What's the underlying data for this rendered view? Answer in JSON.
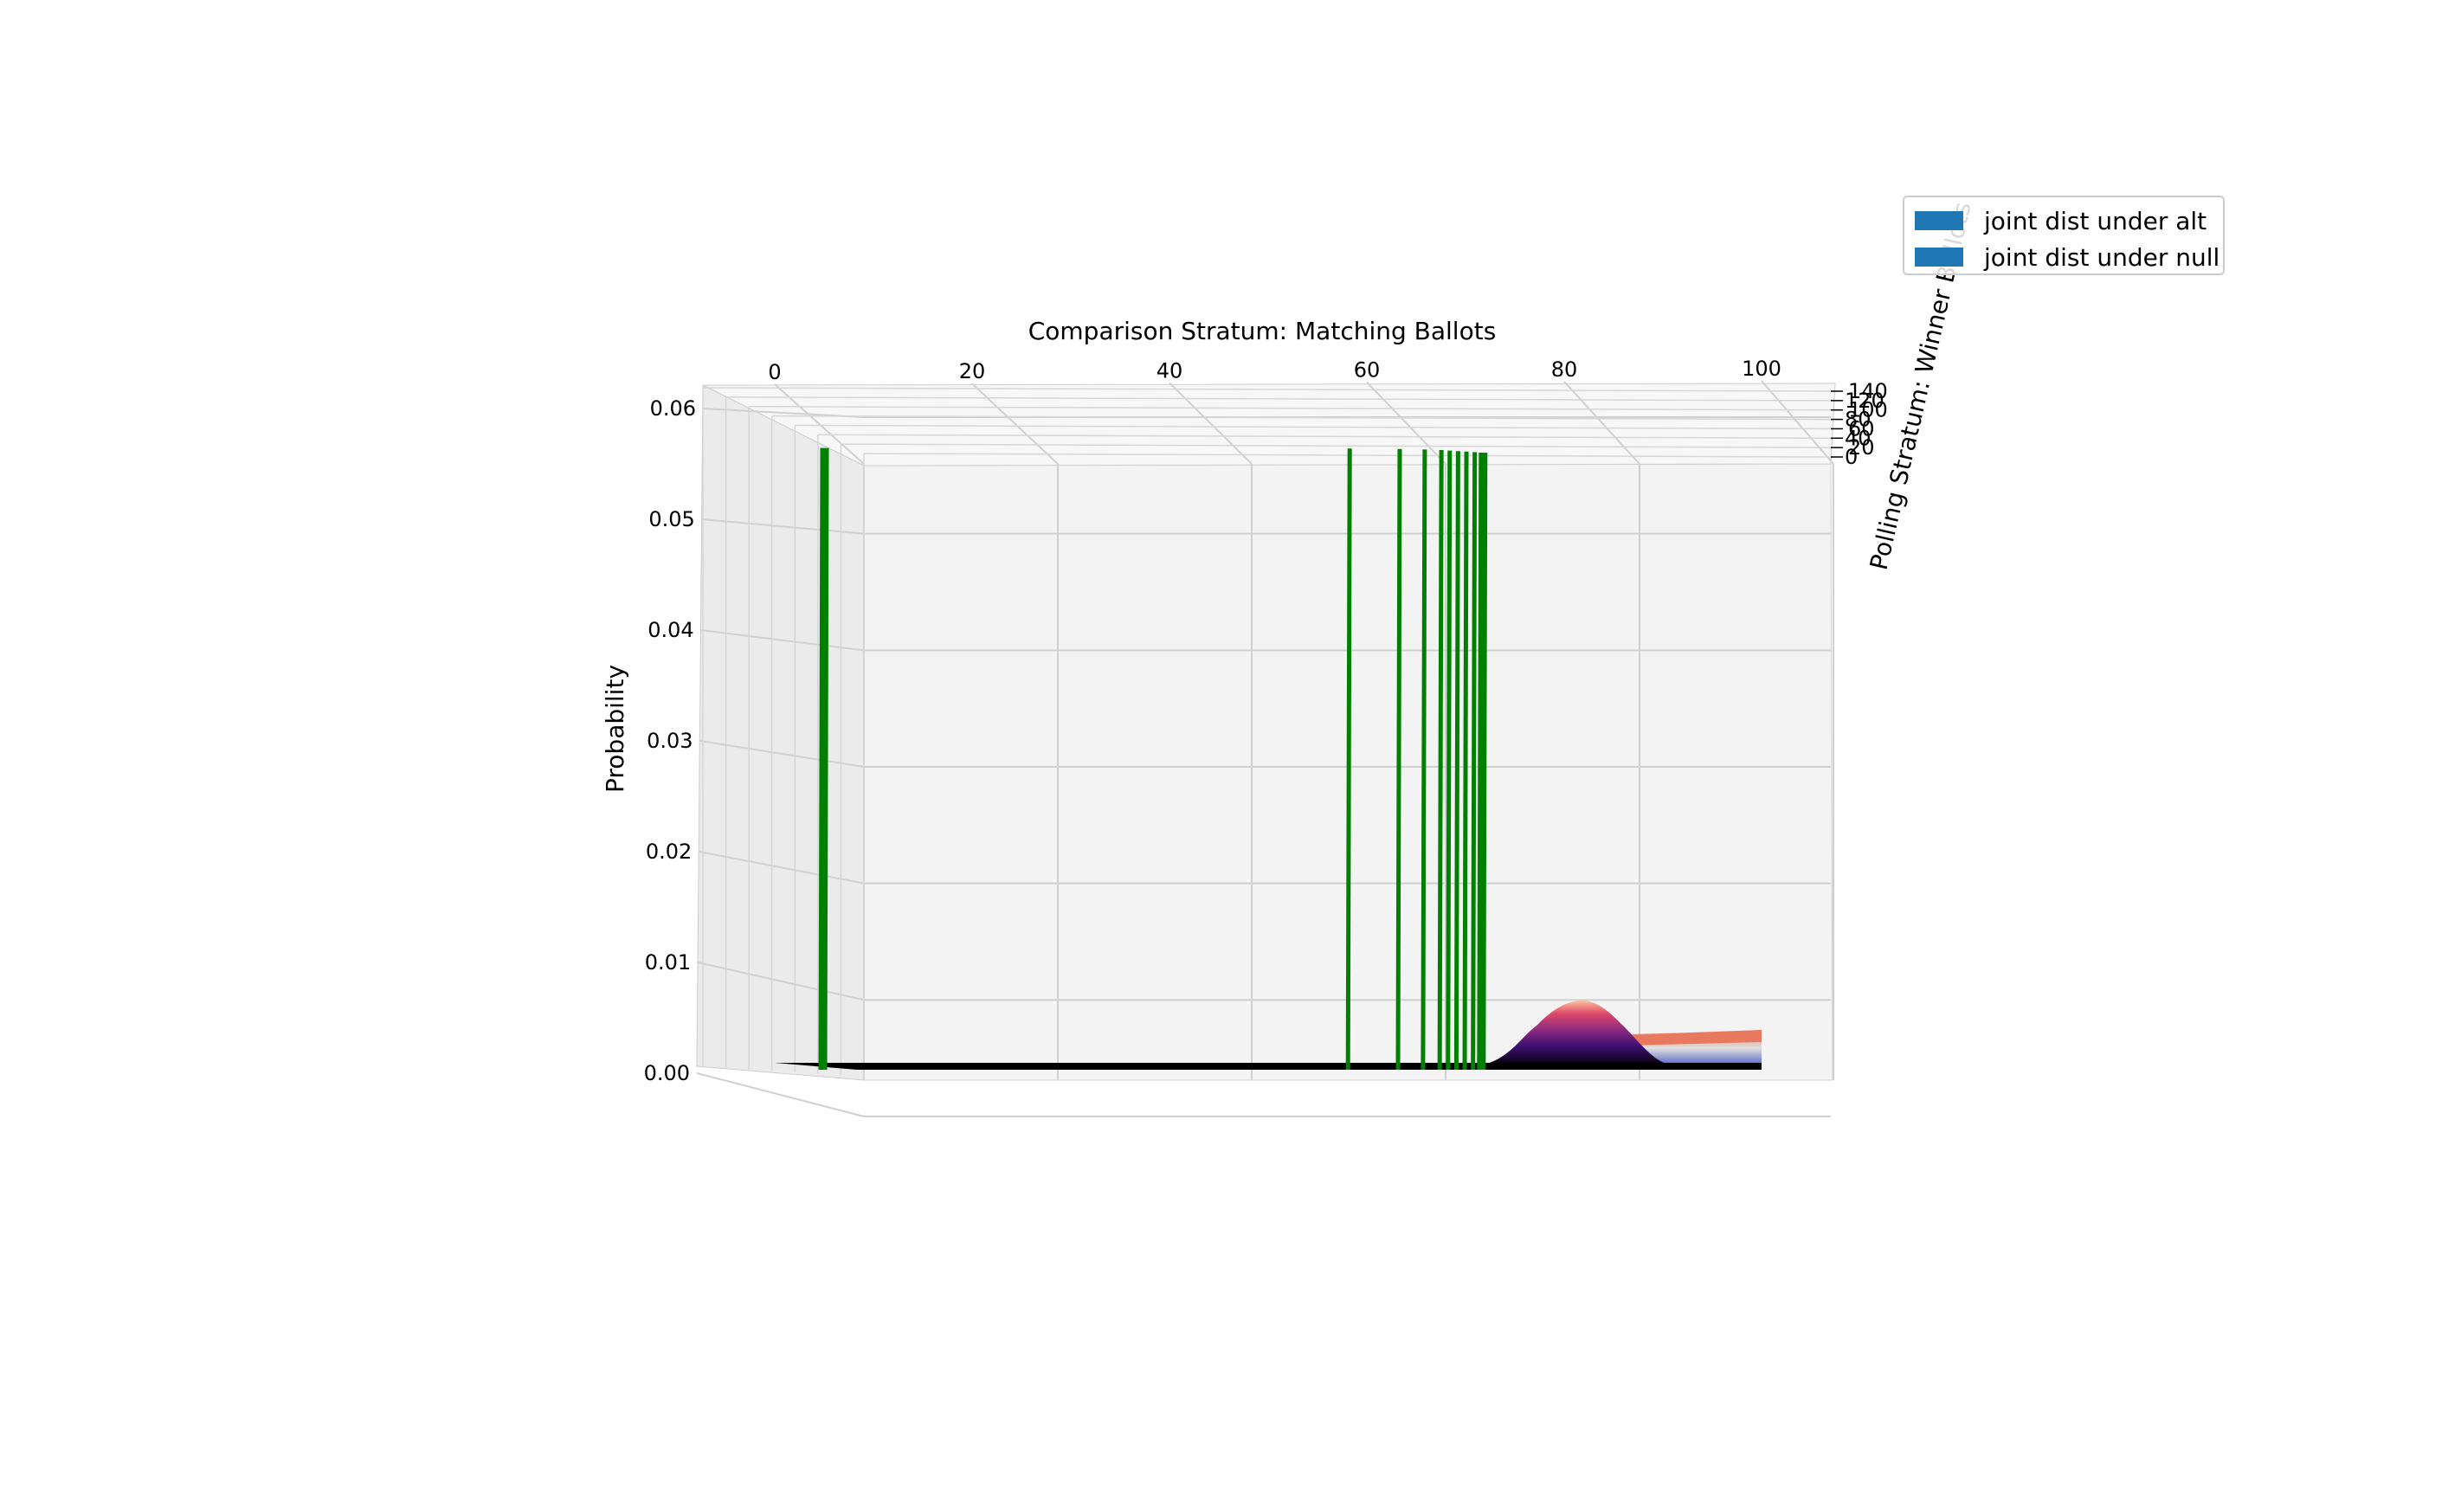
{
  "chart_data": {
    "type": "surface3d",
    "title": "Comparison Stratum: Matching Ballots",
    "xlabel": "",
    "ylabel": "Polling Stratum: Winner Ballots",
    "zlabel": "Probability",
    "x_ticks": [
      "0",
      "20",
      "40",
      "60",
      "80",
      "100"
    ],
    "y_ticks": [
      "0",
      "20",
      "40",
      "60",
      "80",
      "100",
      "120",
      "140"
    ],
    "z_ticks": [
      "0.00",
      "0.01",
      "0.02",
      "0.03",
      "0.04",
      "0.05",
      "0.06"
    ],
    "xlim": [
      0,
      100
    ],
    "ylim": [
      0,
      140
    ],
    "zlim": [
      0,
      0.06
    ],
    "legend": {
      "placement": "upper-right",
      "entries": [
        {
          "label": "joint dist under alt",
          "color": "#1f77b4"
        },
        {
          "label": "joint dist under null",
          "color": "#1f77b4"
        }
      ]
    },
    "green_lines": {
      "color": "#008000",
      "x": [
        4,
        67,
        73,
        76,
        78,
        79,
        80,
        81,
        82,
        83
      ],
      "height": 0.058
    },
    "surfaces": [
      {
        "colormap": "magma",
        "peak_x": 80,
        "peak": 0.0062
      },
      {
        "colormap": "coolwarm",
        "region_x": [
          83,
          100
        ],
        "level": 0.003
      }
    ]
  }
}
